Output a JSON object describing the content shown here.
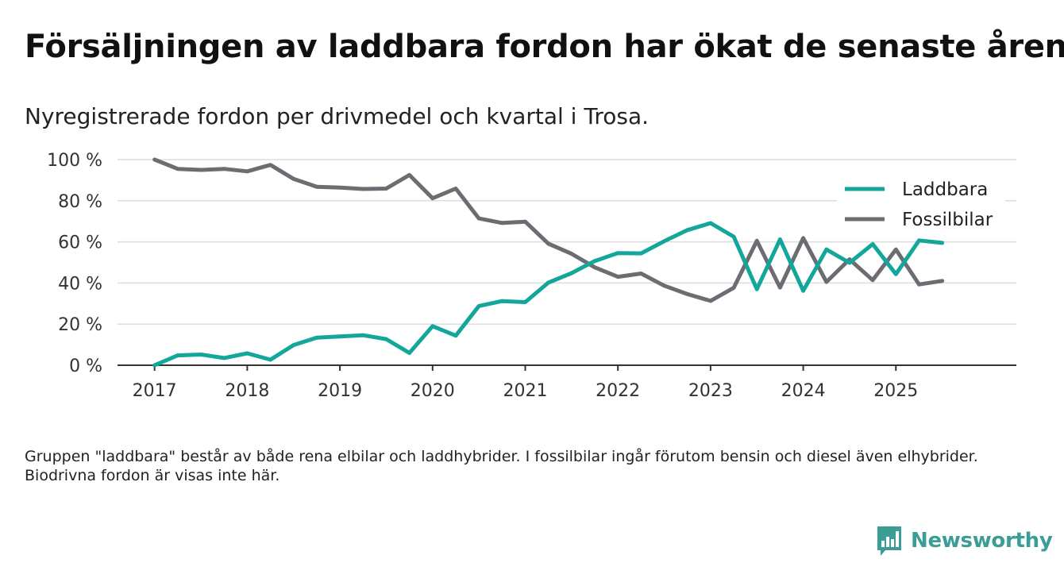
{
  "colors": {
    "accent": "#13a69a",
    "fossil": "#6d6c72",
    "brand": "#3a9d96",
    "grid": "#dddddd",
    "axis": "#333333"
  },
  "chart_data": {
    "type": "line",
    "title": "Försäljningen av laddbara fordon har ökat de senaste åren",
    "subtitle": "Nyregistrerade fordon per drivmedel och kvartal i Trosa.",
    "xlabel": "",
    "ylabel": "",
    "xlim": [
      2016.6,
      2026.3
    ],
    "ylim": [
      0,
      100
    ],
    "x_ticks": [
      2017,
      2018,
      2019,
      2020,
      2021,
      2022,
      2023,
      2024,
      2025
    ],
    "x_tick_labels": [
      "2017",
      "2018",
      "2019",
      "2020",
      "2021",
      "2022",
      "2023",
      "2024",
      "2025"
    ],
    "y_ticks": [
      0,
      20,
      40,
      60,
      80,
      100
    ],
    "y_tick_labels": [
      "0 %",
      "20 %",
      "40 %",
      "60 %",
      "80 %",
      "100 %"
    ],
    "grid": true,
    "legend_position": "top-right",
    "x": [
      2017.0,
      2017.25,
      2017.5,
      2017.75,
      2018.0,
      2018.25,
      2018.5,
      2018.75,
      2019.0,
      2019.25,
      2019.5,
      2019.75,
      2020.0,
      2020.25,
      2020.5,
      2020.75,
      2021.0,
      2021.25,
      2021.5,
      2021.75,
      2022.0,
      2022.25,
      2022.5,
      2022.75,
      2023.0,
      2023.25,
      2023.5,
      2023.75,
      2024.0,
      2024.25,
      2024.5,
      2024.75,
      2025.0,
      2025.25,
      2025.5
    ],
    "series": [
      {
        "name": "Laddbara",
        "color": "#13a69a",
        "values": [
          0,
          4.8,
          5.2,
          3.5,
          5.8,
          2.7,
          9.8,
          13.4,
          14,
          14.6,
          12.7,
          6,
          19,
          14.4,
          28.8,
          31.2,
          30.7,
          40.2,
          44.8,
          50.7,
          54.5,
          54.4,
          60.3,
          65.7,
          69.1,
          62.5,
          37,
          61.2,
          36.2,
          56.3,
          49.8,
          58.9,
          44.3,
          60.7,
          59.5
        ]
      },
      {
        "name": "Fossilbilar",
        "color": "#6d6c72",
        "values": [
          100,
          95.5,
          95,
          95.5,
          94.3,
          97.4,
          90.6,
          86.8,
          86.4,
          85.7,
          85.9,
          92.5,
          81.2,
          85.9,
          71.4,
          69.2,
          69.8,
          59.1,
          54.2,
          47.6,
          43,
          44.6,
          38.7,
          34.6,
          31.3,
          37.7,
          60.5,
          37.8,
          61.8,
          40.5,
          51.5,
          41.4,
          56.3,
          39.3,
          41
        ]
      }
    ]
  },
  "footnote": "Gruppen \"laddbara\" består av både rena elbilar och laddhybrider. I fossilbilar ingår förutom bensin och diesel även elhybrider. Biodrivna fordon är visas inte här.",
  "brand": {
    "name": "Newsworthy",
    "icon": "bar-chart-speech-icon"
  }
}
